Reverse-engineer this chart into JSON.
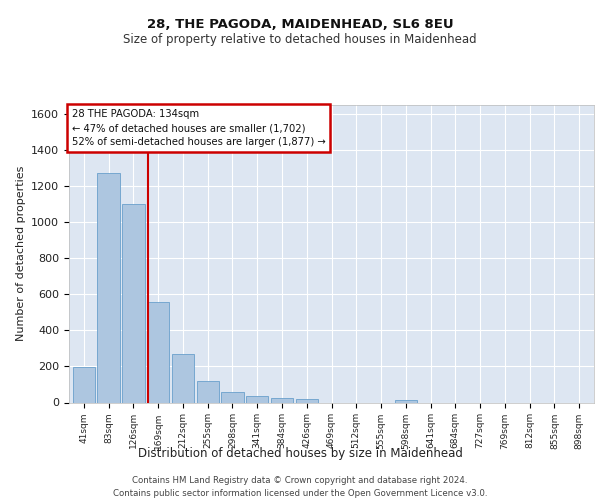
{
  "title1": "28, THE PAGODA, MAIDENHEAD, SL6 8EU",
  "title2": "Size of property relative to detached houses in Maidenhead",
  "xlabel": "Distribution of detached houses by size in Maidenhead",
  "ylabel": "Number of detached properties",
  "footer1": "Contains HM Land Registry data © Crown copyright and database right 2024.",
  "footer2": "Contains public sector information licensed under the Open Government Licence v3.0.",
  "annotation_title": "28 THE PAGODA: 134sqm",
  "annotation_line1": "← 47% of detached houses are smaller (1,702)",
  "annotation_line2": "52% of semi-detached houses are larger (1,877) →",
  "bar_color": "#adc6e0",
  "bar_edge_color": "#6aa0cc",
  "vline_color": "#cc0000",
  "annotation_box_color": "#cc0000",
  "bg_color": "#dde6f2",
  "grid_color": "#ffffff",
  "categories": [
    "41sqm",
    "83sqm",
    "126sqm",
    "169sqm",
    "212sqm",
    "255sqm",
    "298sqm",
    "341sqm",
    "384sqm",
    "426sqm",
    "469sqm",
    "512sqm",
    "555sqm",
    "598sqm",
    "641sqm",
    "684sqm",
    "727sqm",
    "769sqm",
    "812sqm",
    "855sqm",
    "898sqm"
  ],
  "values": [
    198,
    1275,
    1100,
    560,
    268,
    120,
    58,
    35,
    25,
    18,
    0,
    0,
    0,
    16,
    0,
    0,
    0,
    0,
    0,
    0,
    0
  ],
  "vline_x": 2.57,
  "ylim": [
    0,
    1650
  ],
  "yticks": [
    0,
    200,
    400,
    600,
    800,
    1000,
    1200,
    1400,
    1600
  ]
}
